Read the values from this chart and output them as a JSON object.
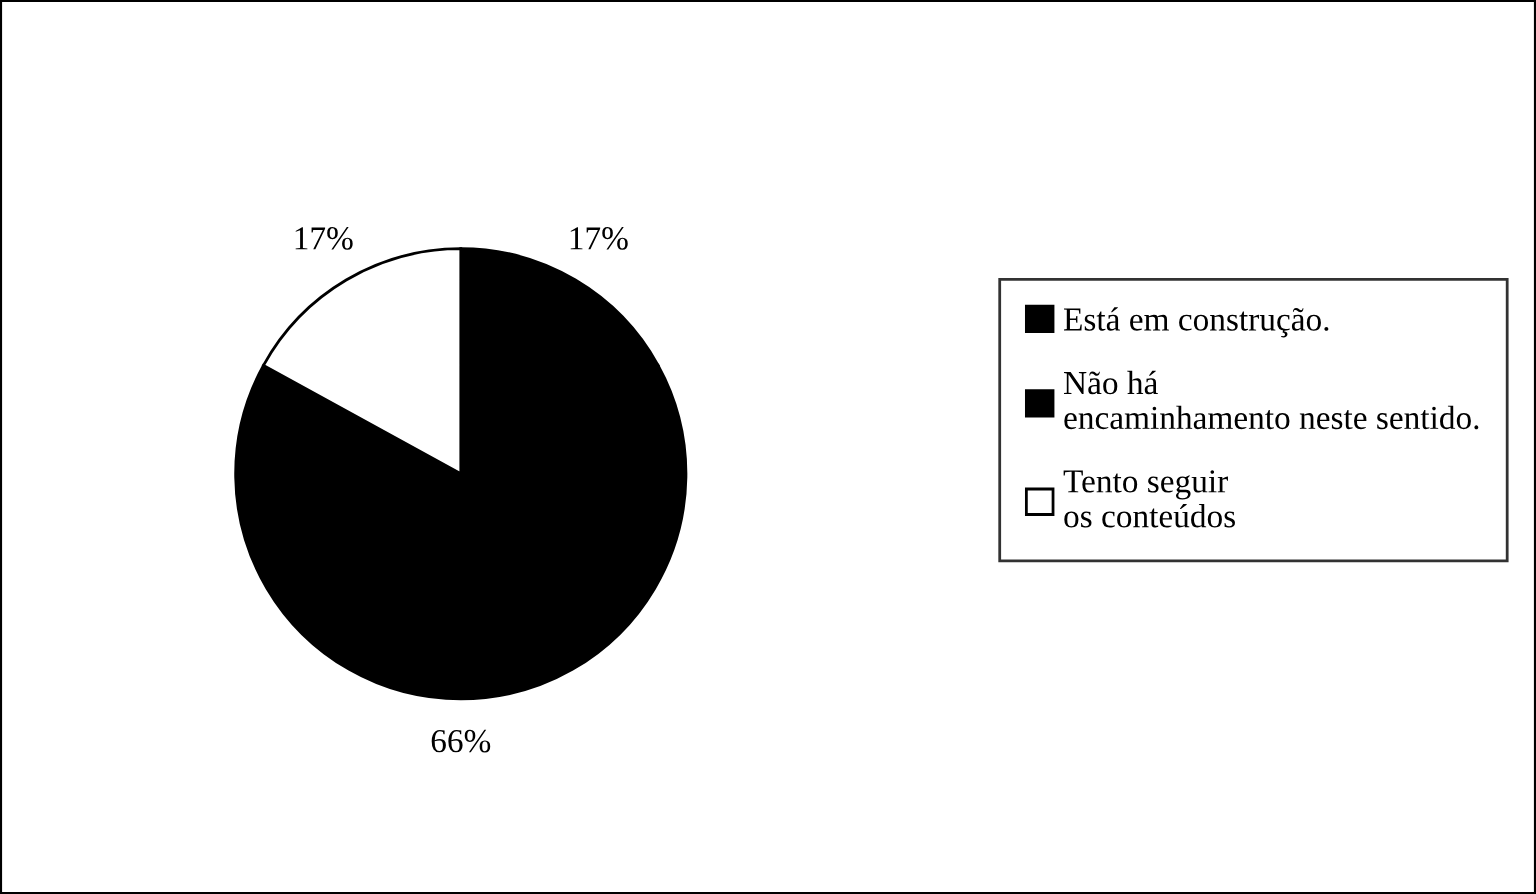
{
  "chart_data": {
    "type": "pie",
    "categories": [
      "Está em construção.",
      "Não há encaminhamento neste sentido.",
      "Tento seguir os conteúdos"
    ],
    "values": [
      17,
      66,
      17
    ],
    "colors": [
      "#000000",
      "#000000",
      "#ffffff"
    ],
    "value_labels": [
      "17%",
      "66%",
      "17%"
    ],
    "legend": "right"
  }
}
